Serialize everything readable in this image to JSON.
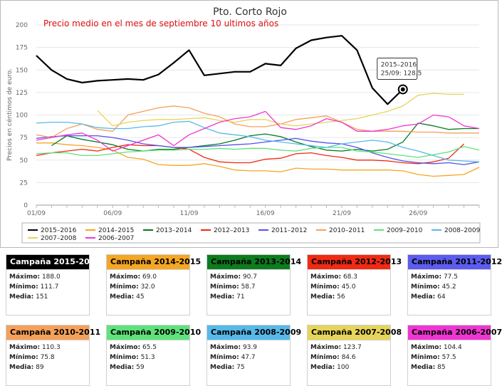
{
  "chart_data": {
    "type": "line",
    "title": "Pto. Corto Rojo",
    "subtitle": "Precio medio en el mes de septiembre 10 ultimos  años",
    "ylabel": "Precios en céntimos de euro.",
    "xlabel": "",
    "ylim": [
      0,
      200
    ],
    "yticks": [
      0,
      25,
      50,
      75,
      100,
      125,
      150,
      175,
      200
    ],
    "x": [
      "01/09",
      "02/09",
      "03/09",
      "04/09",
      "05/09",
      "06/09",
      "07/09",
      "08/09",
      "09/09",
      "10/09",
      "11/09",
      "12/09",
      "13/09",
      "14/09",
      "15/09",
      "16/09",
      "17/09",
      "18/09",
      "19/09",
      "20/09",
      "21/09",
      "22/09",
      "23/09",
      "24/09",
      "25/09",
      "26/09",
      "27/09",
      "28/09",
      "29/09",
      "30/09"
    ],
    "xtick_labels": [
      "01/09",
      "06/09",
      "11/09",
      "16/09",
      "21/09",
      "26/09"
    ],
    "grid": true,
    "legend_position": "bottom",
    "series": [
      {
        "name": "2015–2016",
        "color": "#000000",
        "width": 2.2,
        "values": [
          166,
          150,
          140,
          136,
          138,
          139,
          140,
          139,
          145,
          158,
          172,
          144,
          146,
          148,
          148,
          157,
          155,
          174,
          183,
          186,
          188,
          172,
          130,
          112,
          128.5,
          null,
          null,
          null,
          null,
          null
        ]
      },
      {
        "name": "2014–2015",
        "color": "#f5a623",
        "width": 1.3,
        "values": [
          69,
          69,
          67,
          66,
          64,
          61,
          53,
          51,
          45,
          44,
          44,
          46,
          43,
          39,
          38,
          38,
          37,
          41,
          40,
          40,
          39,
          39,
          39,
          39,
          38,
          34,
          32,
          33,
          34,
          42
        ]
      },
      {
        "name": "2013–2014",
        "color": "#007a1f",
        "width": 1.3,
        "values": [
          null,
          66,
          77,
          73,
          70,
          67,
          62,
          60,
          62,
          62,
          64,
          66,
          68,
          72,
          77,
          79,
          76,
          70,
          65,
          61,
          60,
          62,
          60,
          62,
          70,
          91,
          88,
          84,
          85,
          85
        ]
      },
      {
        "name": "2012–2013",
        "color": "#ee2a12",
        "width": 1.3,
        "values": [
          55,
          58,
          60,
          62,
          60,
          64,
          67,
          66,
          66,
          64,
          62,
          53,
          48,
          47,
          47,
          51,
          52,
          57,
          58,
          55,
          53,
          50,
          50,
          49,
          47,
          46,
          48,
          52,
          68,
          null
        ]
      },
      {
        "name": "2011–2012",
        "color": "#5551ee",
        "width": 1.3,
        "values": [
          74,
          76,
          77,
          77,
          77,
          75,
          72,
          68,
          66,
          64,
          64,
          65,
          66,
          67,
          68,
          70,
          72,
          74,
          71,
          69,
          68,
          64,
          58,
          53,
          49,
          47,
          46,
          47,
          45,
          48
        ]
      },
      {
        "name": "2010–2011",
        "color": "#f5a05a",
        "width": 1.3,
        "values": [
          78,
          75,
          85,
          90,
          84,
          82,
          100,
          104,
          108,
          110,
          108,
          102,
          98,
          90,
          87,
          87,
          90,
          95,
          97,
          99,
          92,
          84,
          82,
          82,
          82,
          81,
          81,
          80,
          80,
          80
        ]
      },
      {
        "name": "2009–2010",
        "color": "#5ee37c",
        "width": 1.3,
        "values": [
          57,
          58,
          58,
          55,
          55,
          57,
          59,
          60,
          61,
          61,
          62,
          62,
          63,
          62,
          63,
          63,
          61,
          60,
          63,
          64,
          64,
          60,
          59,
          57,
          55,
          53,
          56,
          59,
          65,
          61
        ]
      },
      {
        "name": "2008–2009",
        "color": "#56b9ea",
        "width": 1.3,
        "values": [
          91,
          92,
          92,
          90,
          86,
          85,
          85,
          87,
          88,
          92,
          93,
          86,
          80,
          78,
          76,
          72,
          70,
          68,
          66,
          64,
          68,
          70,
          72,
          70,
          64,
          60,
          55,
          50,
          49,
          48
        ]
      },
      {
        "name": "2007–2008",
        "color": "#e6d55a",
        "width": 1.3,
        "values": [
          null,
          null,
          null,
          null,
          105,
          88,
          92,
          94,
          95,
          95,
          96,
          97,
          94,
          92,
          95,
          95,
          90,
          88,
          90,
          92,
          94,
          96,
          100,
          104,
          110,
          122,
          124,
          123,
          123,
          null
        ]
      },
      {
        "name": "2006–2007",
        "color": "#ee36d2",
        "width": 1.3,
        "values": [
          72,
          75,
          78,
          80,
          72,
          60,
          66,
          72,
          78,
          66,
          78,
          85,
          92,
          96,
          98,
          104,
          86,
          84,
          88,
          96,
          92,
          82,
          82,
          84,
          88,
          90,
          100,
          98,
          88,
          85
        ]
      }
    ],
    "tooltip": {
      "series": "2015–2016",
      "date": "25/09",
      "value": "128.5"
    }
  },
  "cards": [
    {
      "title": "Campaña 2015-2016",
      "color": "#000000",
      "text_color": "#ffffff",
      "max_label": "Máximo:",
      "max": "188.0",
      "min_label": "Mínimo:",
      "min": "111.7",
      "avg_label": "Media:",
      "avg": "151"
    },
    {
      "title": "Campaña 2014-2015",
      "color": "#f5a623",
      "text_color": "#000000",
      "max_label": "Máximo:",
      "max": "69.0",
      "min_label": "Mínimo:",
      "min": "32.0",
      "avg_label": "Media:",
      "avg": "45"
    },
    {
      "title": "Campaña 2013-2014",
      "color": "#0c7c1e",
      "text_color": "#000000",
      "max_label": "Máximo:",
      "max": "90.7",
      "min_label": "Mínimo:",
      "min": "58.7",
      "avg_label": "Media:",
      "avg": "71"
    },
    {
      "title": "Campaña 2012-2013",
      "color": "#f02a14",
      "text_color": "#000000",
      "max_label": "Máximo:",
      "max": "68.3",
      "min_label": "Mínimo:",
      "min": "45.0",
      "avg_label": "Media:",
      "avg": "56"
    },
    {
      "title": "Campaña 2011-2012",
      "color": "#5c5cf0",
      "text_color": "#000000",
      "max_label": "Máximo:",
      "max": "77.5",
      "min_label": "Mínimo:",
      "min": "45.2",
      "avg_label": "Media:",
      "avg": "64"
    },
    {
      "title": "Campaña 2010-2011",
      "color": "#f5a05a",
      "text_color": "#000000",
      "max_label": "Máximo:",
      "max": "110.3",
      "min_label": "Mínimo:",
      "min": "75.8",
      "avg_label": "Media:",
      "avg": "89"
    },
    {
      "title": "Campaña 2009-2010",
      "color": "#5ee37c",
      "text_color": "#000000",
      "max_label": "Máximo:",
      "max": "65.5",
      "min_label": "Mínimo:",
      "min": "51.3",
      "avg_label": "Media:",
      "avg": "59"
    },
    {
      "title": "Campaña 2008-2009",
      "color": "#56b9ea",
      "text_color": "#000000",
      "max_label": "Máximo:",
      "max": "93.9",
      "min_label": "Mínimo:",
      "min": "47.7",
      "avg_label": "Media:",
      "avg": "75"
    },
    {
      "title": "Campaña 2007-2008",
      "color": "#e6d55a",
      "text_color": "#000000",
      "max_label": "Máximo:",
      "max": "123.7",
      "min_label": "Mínimo:",
      "min": "84.6",
      "avg_label": "Media:",
      "avg": "100"
    },
    {
      "title": "Campaña 2006-2007",
      "color": "#ee36d2",
      "text_color": "#000000",
      "max_label": "Máximo:",
      "max": "104.4",
      "min_label": "Mínimo:",
      "min": "57.5",
      "avg_label": "Media:",
      "avg": "85"
    }
  ]
}
